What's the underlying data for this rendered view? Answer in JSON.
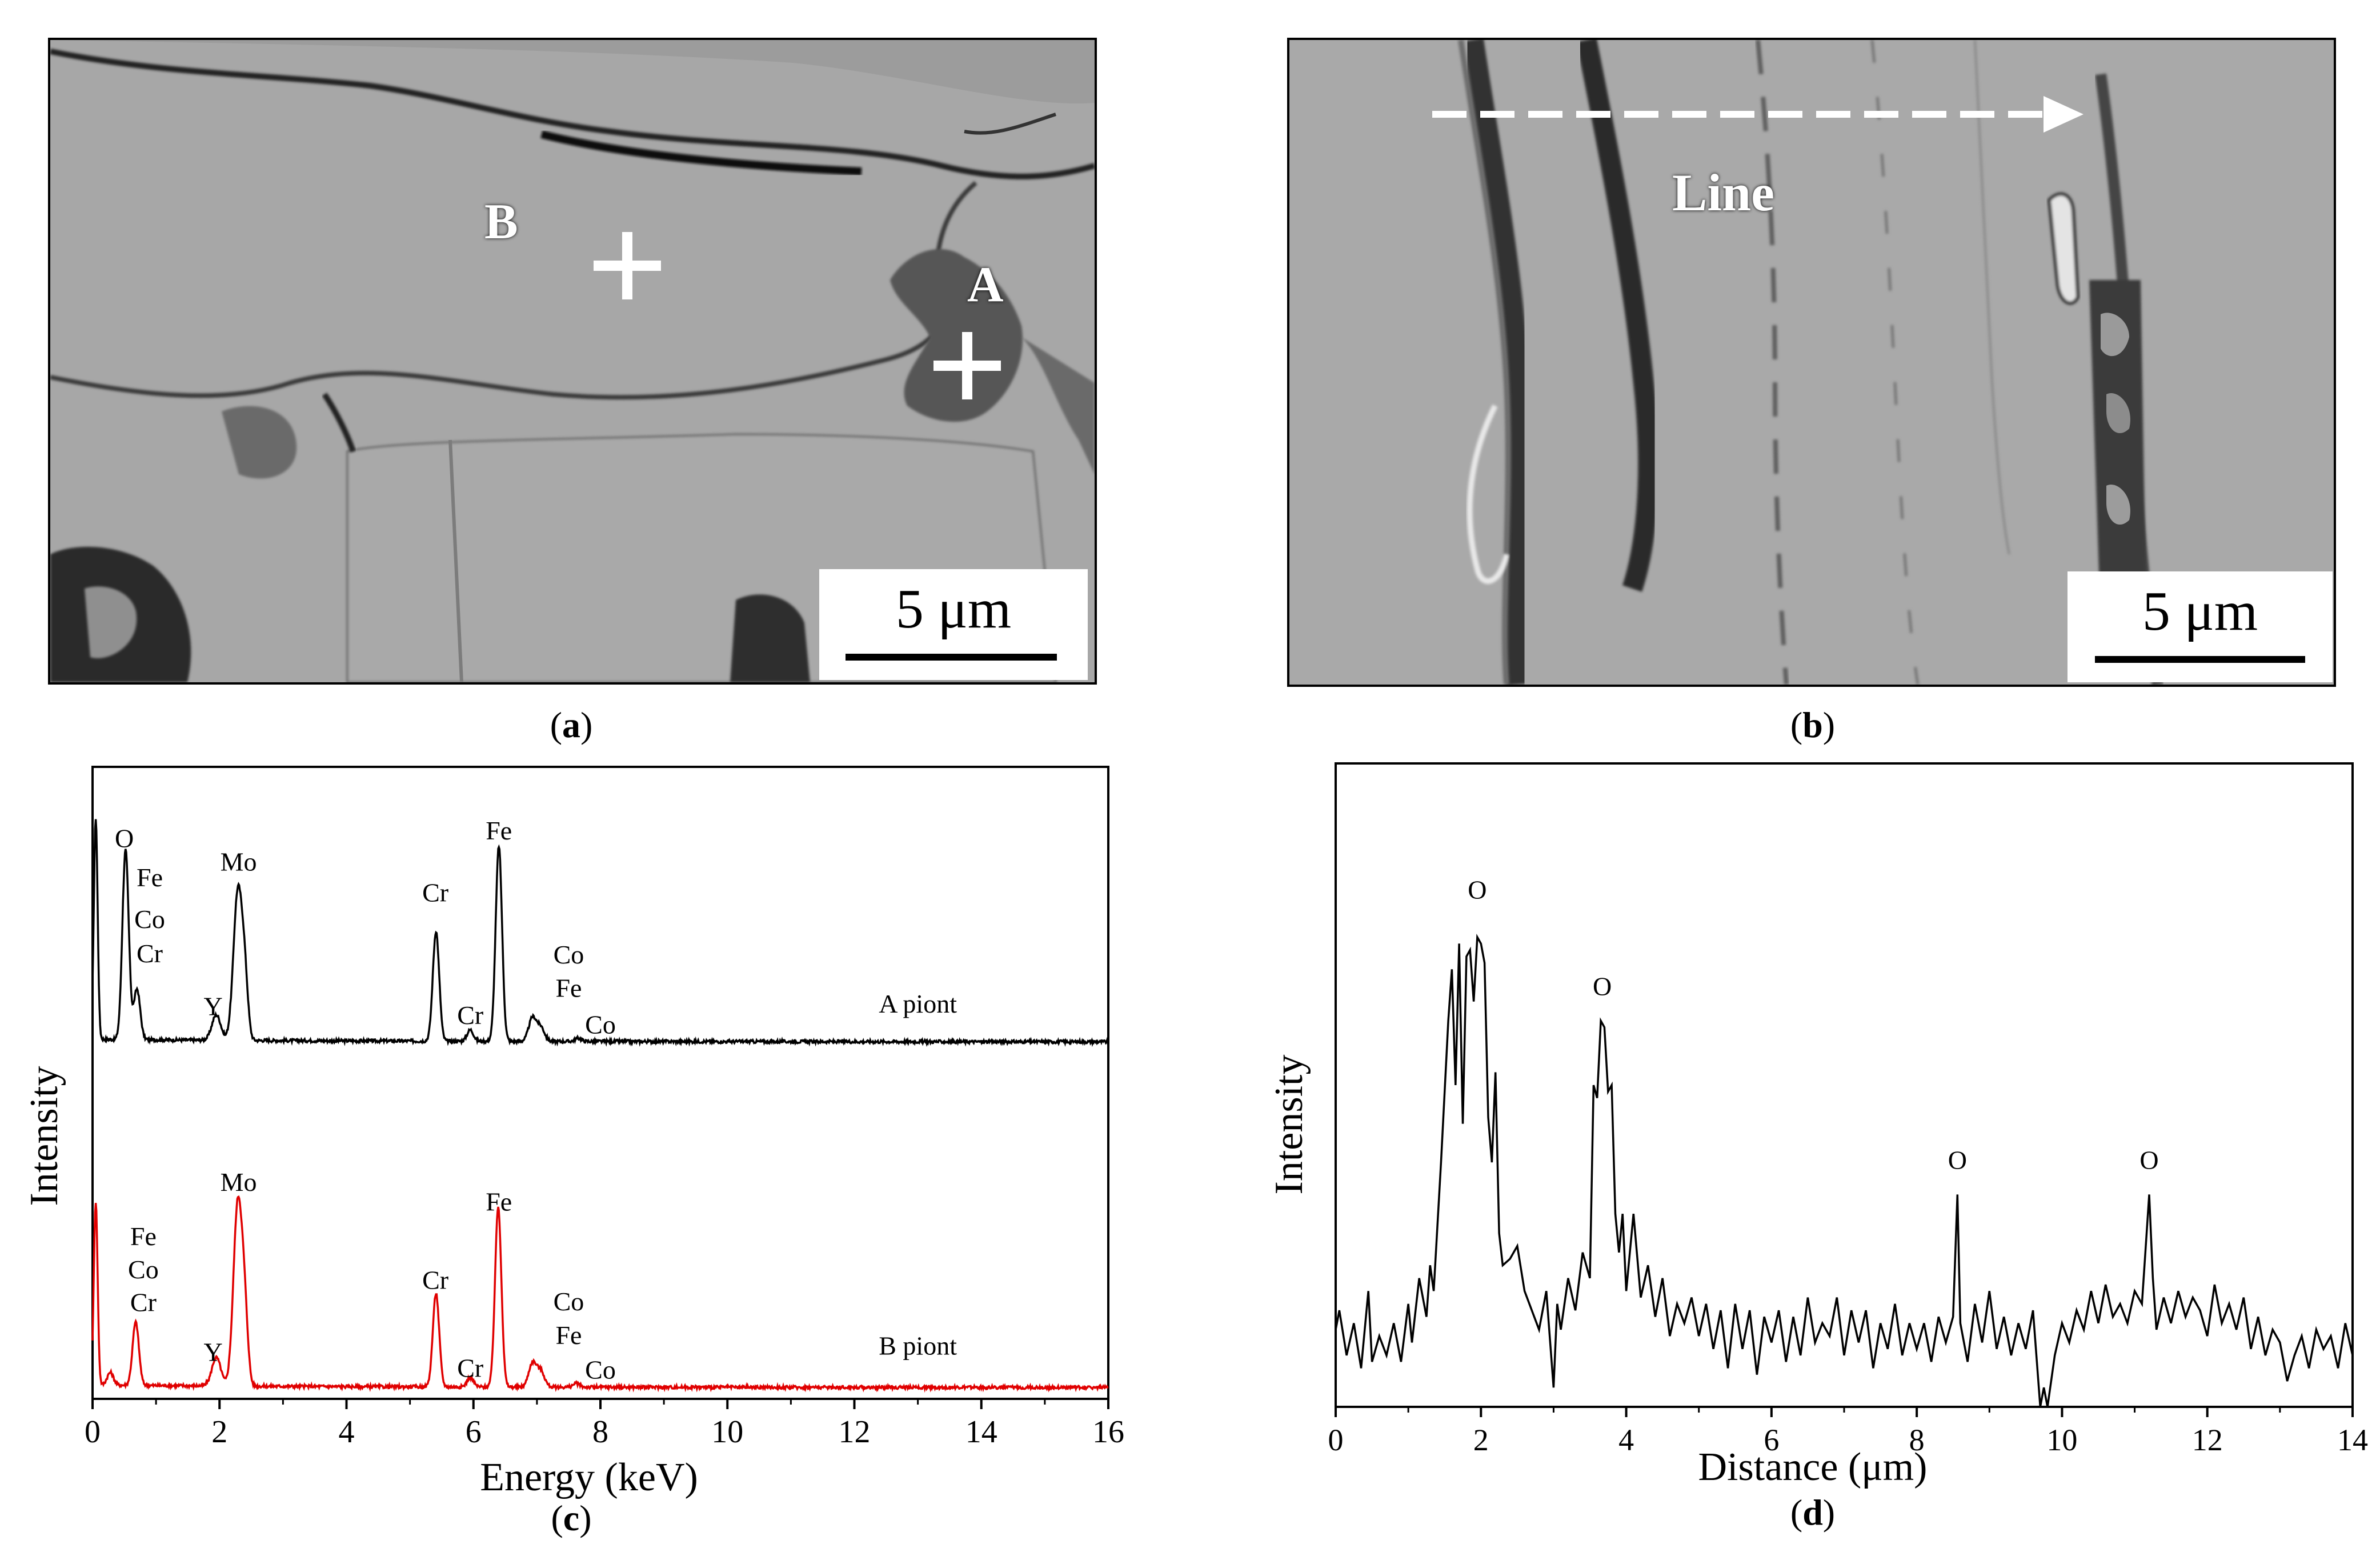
{
  "panels": {
    "a": {
      "caption_open": "(",
      "caption_letter": "a",
      "caption_close": ")",
      "scale_bar": "5 μm",
      "labels": [
        {
          "text": "A"
        },
        {
          "text": "B"
        }
      ]
    },
    "b": {
      "caption_open": "(",
      "caption_letter": "b",
      "caption_close": ")",
      "scale_bar": "5 μm",
      "line_label": "Line"
    },
    "c": {
      "caption_open": "(",
      "caption_letter": "c",
      "caption_close": ")"
    },
    "d": {
      "caption_open": "(",
      "caption_letter": "d",
      "caption_close": ")"
    }
  },
  "colors": {
    "sem_background": "#a6a6a6",
    "spectrum_A": "#000000",
    "spectrum_B": "#e00000"
  },
  "chart_data": [
    {
      "type": "line",
      "panel": "c",
      "xlabel": "Energy (keV)",
      "ylabel": "Intensity",
      "xlim": [
        0,
        16
      ],
      "ylim": [
        0,
        1
      ],
      "x_ticks": [
        0,
        2,
        4,
        6,
        8,
        10,
        12,
        14,
        16
      ],
      "grid": false,
      "series": [
        {
          "name": "A piont",
          "color": "#000000",
          "baseline": 0.565,
          "peaks": [
            {
              "x": 0.05,
              "height": 0.35,
              "width": 0.03
            },
            {
              "x": 0.52,
              "height": 0.3,
              "width": 0.05
            },
            {
              "x": 0.7,
              "height": 0.08,
              "width": 0.05
            },
            {
              "x": 1.95,
              "height": 0.04,
              "width": 0.07
            },
            {
              "x": 2.29,
              "height": 0.237,
              "width": 0.07
            },
            {
              "x": 2.4,
              "height": 0.08,
              "width": 0.05
            },
            {
              "x": 5.41,
              "height": 0.174,
              "width": 0.05
            },
            {
              "x": 5.95,
              "height": 0.018,
              "width": 0.05
            },
            {
              "x": 6.4,
              "height": 0.309,
              "width": 0.05
            },
            {
              "x": 6.93,
              "height": 0.037,
              "width": 0.06
            },
            {
              "x": 7.06,
              "height": 0.022,
              "width": 0.06
            },
            {
              "x": 7.65,
              "height": 0.005,
              "width": 0.05
            }
          ],
          "peak_labels": [
            {
              "text": "O",
              "x": 0.5,
              "y": 0.873
            },
            {
              "text": "Fe",
              "x": 0.9,
              "y": 0.811
            },
            {
              "text": "Co",
              "x": 0.9,
              "y": 0.745
            },
            {
              "text": "Cr",
              "x": 0.9,
              "y": 0.691
            },
            {
              "text": "Y",
              "x": 1.9,
              "y": 0.607
            },
            {
              "text": "Mo",
              "x": 2.3,
              "y": 0.836
            },
            {
              "text": "Cr",
              "x": 5.4,
              "y": 0.787
            },
            {
              "text": "Cr",
              "x": 5.95,
              "y": 0.593
            },
            {
              "text": "Fe",
              "x": 6.4,
              "y": 0.885
            },
            {
              "text": "Co",
              "x": 7.5,
              "y": 0.689
            },
            {
              "text": "Fe",
              "x": 7.5,
              "y": 0.636
            },
            {
              "text": "Co",
              "x": 8.0,
              "y": 0.578
            },
            {
              "text": "A piont",
              "x": 13.0,
              "y": 0.611
            }
          ]
        },
        {
          "name": "B piont",
          "color": "#e00000",
          "baseline": 0.018,
          "peaks": [
            {
              "x": 0.05,
              "height": 0.29,
              "width": 0.03
            },
            {
              "x": 0.28,
              "height": 0.02,
              "width": 0.05
            },
            {
              "x": 0.68,
              "height": 0.1,
              "width": 0.05
            },
            {
              "x": 1.95,
              "height": 0.045,
              "width": 0.07
            },
            {
              "x": 2.29,
              "height": 0.292,
              "width": 0.07
            },
            {
              "x": 2.4,
              "height": 0.09,
              "width": 0.05
            },
            {
              "x": 5.41,
              "height": 0.148,
              "width": 0.05
            },
            {
              "x": 5.95,
              "height": 0.015,
              "width": 0.05
            },
            {
              "x": 6.39,
              "height": 0.285,
              "width": 0.05
            },
            {
              "x": 6.93,
              "height": 0.038,
              "width": 0.06
            },
            {
              "x": 7.06,
              "height": 0.025,
              "width": 0.06
            },
            {
              "x": 7.62,
              "height": 0.006,
              "width": 0.05
            }
          ],
          "peak_labels": [
            {
              "text": "Fe",
              "x": 0.8,
              "y": 0.243
            },
            {
              "text": "Co",
              "x": 0.8,
              "y": 0.191
            },
            {
              "text": "Cr",
              "x": 0.8,
              "y": 0.139
            },
            {
              "text": "Y",
              "x": 1.9,
              "y": 0.06
            },
            {
              "text": "Mo",
              "x": 2.3,
              "y": 0.329
            },
            {
              "text": "Cr",
              "x": 5.4,
              "y": 0.174
            },
            {
              "text": "Cr",
              "x": 5.95,
              "y": 0.035
            },
            {
              "text": "Fe",
              "x": 6.4,
              "y": 0.298
            },
            {
              "text": "Co",
              "x": 7.5,
              "y": 0.14
            },
            {
              "text": "Fe",
              "x": 7.5,
              "y": 0.087
            },
            {
              "text": "Co",
              "x": 8.0,
              "y": 0.032
            },
            {
              "text": "B piont",
              "x": 13.0,
              "y": 0.07
            }
          ]
        }
      ]
    },
    {
      "type": "line",
      "panel": "d",
      "xlabel": "Distance (μm)",
      "ylabel": "Intensity",
      "xlim": [
        0,
        14
      ],
      "ylim": [
        0,
        1
      ],
      "x_ticks": [
        0,
        2,
        4,
        6,
        8,
        10,
        12,
        14
      ],
      "grid": false,
      "series": [
        {
          "name": "",
          "color": "#000000",
          "points": [
            [
              0.0,
              0.12
            ],
            [
              0.05,
              0.15
            ],
            [
              0.15,
              0.08
            ],
            [
              0.25,
              0.13
            ],
            [
              0.35,
              0.06
            ],
            [
              0.45,
              0.18
            ],
            [
              0.5,
              0.07
            ],
            [
              0.6,
              0.11
            ],
            [
              0.7,
              0.08
            ],
            [
              0.8,
              0.13
            ],
            [
              0.9,
              0.07
            ],
            [
              1.0,
              0.16
            ],
            [
              1.05,
              0.1
            ],
            [
              1.15,
              0.2
            ],
            [
              1.25,
              0.14
            ],
            [
              1.3,
              0.22
            ],
            [
              1.35,
              0.18
            ],
            [
              1.45,
              0.38
            ],
            [
              1.55,
              0.6
            ],
            [
              1.6,
              0.68
            ],
            [
              1.65,
              0.5
            ],
            [
              1.7,
              0.72
            ],
            [
              1.75,
              0.44
            ],
            [
              1.8,
              0.7
            ],
            [
              1.85,
              0.71
            ],
            [
              1.9,
              0.63
            ],
            [
              1.95,
              0.73
            ],
            [
              2.0,
              0.72
            ],
            [
              2.05,
              0.69
            ],
            [
              2.1,
              0.45
            ],
            [
              2.15,
              0.38
            ],
            [
              2.2,
              0.52
            ],
            [
              2.25,
              0.27
            ],
            [
              2.3,
              0.22
            ],
            [
              2.4,
              0.23
            ],
            [
              2.5,
              0.25
            ],
            [
              2.6,
              0.18
            ],
            [
              2.7,
              0.15
            ],
            [
              2.8,
              0.12
            ],
            [
              2.9,
              0.18
            ],
            [
              3.0,
              0.03
            ],
            [
              3.05,
              0.16
            ],
            [
              3.1,
              0.12
            ],
            [
              3.2,
              0.2
            ],
            [
              3.3,
              0.15
            ],
            [
              3.4,
              0.24
            ],
            [
              3.5,
              0.2
            ],
            [
              3.55,
              0.5
            ],
            [
              3.6,
              0.48
            ],
            [
              3.65,
              0.6
            ],
            [
              3.7,
              0.59
            ],
            [
              3.75,
              0.49
            ],
            [
              3.8,
              0.5
            ],
            [
              3.85,
              0.3
            ],
            [
              3.9,
              0.24
            ],
            [
              3.95,
              0.3
            ],
            [
              4.0,
              0.18
            ],
            [
              4.05,
              0.24
            ],
            [
              4.1,
              0.3
            ],
            [
              4.2,
              0.17
            ],
            [
              4.3,
              0.22
            ],
            [
              4.4,
              0.14
            ],
            [
              4.5,
              0.2
            ],
            [
              4.6,
              0.11
            ],
            [
              4.7,
              0.16
            ],
            [
              4.8,
              0.13
            ],
            [
              4.9,
              0.17
            ],
            [
              5.0,
              0.11
            ],
            [
              5.1,
              0.16
            ],
            [
              5.2,
              0.09
            ],
            [
              5.3,
              0.15
            ],
            [
              5.4,
              0.06
            ],
            [
              5.5,
              0.16
            ],
            [
              5.6,
              0.09
            ],
            [
              5.7,
              0.15
            ],
            [
              5.8,
              0.05
            ],
            [
              5.9,
              0.14
            ],
            [
              6.0,
              0.1
            ],
            [
              6.1,
              0.15
            ],
            [
              6.2,
              0.07
            ],
            [
              6.3,
              0.14
            ],
            [
              6.4,
              0.08
            ],
            [
              6.5,
              0.17
            ],
            [
              6.6,
              0.1
            ],
            [
              6.7,
              0.13
            ],
            [
              6.8,
              0.11
            ],
            [
              6.9,
              0.17
            ],
            [
              7.0,
              0.08
            ],
            [
              7.1,
              0.15
            ],
            [
              7.2,
              0.1
            ],
            [
              7.3,
              0.15
            ],
            [
              7.4,
              0.06
            ],
            [
              7.5,
              0.13
            ],
            [
              7.6,
              0.09
            ],
            [
              7.7,
              0.16
            ],
            [
              7.8,
              0.08
            ],
            [
              7.9,
              0.13
            ],
            [
              8.0,
              0.09
            ],
            [
              8.1,
              0.13
            ],
            [
              8.2,
              0.07
            ],
            [
              8.3,
              0.14
            ],
            [
              8.4,
              0.1
            ],
            [
              8.5,
              0.14
            ],
            [
              8.56,
              0.33
            ],
            [
              8.6,
              0.13
            ],
            [
              8.7,
              0.07
            ],
            [
              8.8,
              0.16
            ],
            [
              8.9,
              0.1
            ],
            [
              9.0,
              0.18
            ],
            [
              9.1,
              0.09
            ],
            [
              9.2,
              0.14
            ],
            [
              9.3,
              0.08
            ],
            [
              9.4,
              0.13
            ],
            [
              9.5,
              0.09
            ],
            [
              9.6,
              0.15
            ],
            [
              9.7,
              0.0
            ],
            [
              9.75,
              0.03
            ],
            [
              9.8,
              0.0
            ],
            [
              9.9,
              0.08
            ],
            [
              10.0,
              0.13
            ],
            [
              10.1,
              0.1
            ],
            [
              10.2,
              0.15
            ],
            [
              10.3,
              0.12
            ],
            [
              10.4,
              0.18
            ],
            [
              10.5,
              0.13
            ],
            [
              10.6,
              0.19
            ],
            [
              10.7,
              0.14
            ],
            [
              10.8,
              0.16
            ],
            [
              10.9,
              0.13
            ],
            [
              11.0,
              0.18
            ],
            [
              11.1,
              0.16
            ],
            [
              11.2,
              0.33
            ],
            [
              11.25,
              0.2
            ],
            [
              11.3,
              0.12
            ],
            [
              11.4,
              0.17
            ],
            [
              11.5,
              0.13
            ],
            [
              11.6,
              0.18
            ],
            [
              11.7,
              0.14
            ],
            [
              11.8,
              0.17
            ],
            [
              11.9,
              0.15
            ],
            [
              12.0,
              0.11
            ],
            [
              12.1,
              0.19
            ],
            [
              12.2,
              0.13
            ],
            [
              12.3,
              0.16
            ],
            [
              12.4,
              0.12
            ],
            [
              12.5,
              0.17
            ],
            [
              12.6,
              0.09
            ],
            [
              12.7,
              0.14
            ],
            [
              12.8,
              0.08
            ],
            [
              12.9,
              0.12
            ],
            [
              13.0,
              0.1
            ],
            [
              13.1,
              0.04
            ],
            [
              13.2,
              0.08
            ],
            [
              13.3,
              0.11
            ],
            [
              13.4,
              0.06
            ],
            [
              13.5,
              0.12
            ],
            [
              13.6,
              0.09
            ],
            [
              13.7,
              0.11
            ],
            [
              13.8,
              0.06
            ],
            [
              13.9,
              0.13
            ],
            [
              14.0,
              0.08
            ]
          ],
          "peak_labels": [
            {
              "text": "O",
              "x": 1.95,
              "y": 0.79
            },
            {
              "text": "O",
              "x": 3.67,
              "y": 0.64
            },
            {
              "text": "O",
              "x": 8.56,
              "y": 0.37
            },
            {
              "text": "O",
              "x": 11.2,
              "y": 0.37
            }
          ]
        }
      ]
    }
  ]
}
